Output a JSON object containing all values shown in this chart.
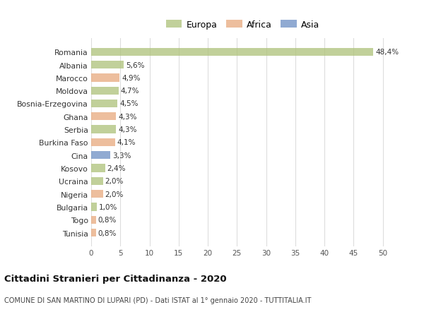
{
  "countries": [
    "Romania",
    "Albania",
    "Marocco",
    "Moldova",
    "Bosnia-Erzegovina",
    "Ghana",
    "Serbia",
    "Burkina Faso",
    "Cina",
    "Kosovo",
    "Ucraina",
    "Nigeria",
    "Bulgaria",
    "Togo",
    "Tunisia"
  ],
  "values": [
    48.4,
    5.6,
    4.9,
    4.7,
    4.5,
    4.3,
    4.3,
    4.1,
    3.3,
    2.4,
    2.0,
    2.0,
    1.0,
    0.8,
    0.8
  ],
  "labels": [
    "48,4%",
    "5,6%",
    "4,9%",
    "4,7%",
    "4,5%",
    "4,3%",
    "4,3%",
    "4,1%",
    "3,3%",
    "2,4%",
    "2,0%",
    "2,0%",
    "1,0%",
    "0,8%",
    "0,8%"
  ],
  "continents": [
    "Europa",
    "Europa",
    "Africa",
    "Europa",
    "Europa",
    "Africa",
    "Europa",
    "Africa",
    "Asia",
    "Europa",
    "Europa",
    "Africa",
    "Europa",
    "Africa",
    "Africa"
  ],
  "colors": {
    "Europa": "#adc178",
    "Africa": "#e8a87c",
    "Asia": "#6b8ec4"
  },
  "legend_labels": [
    "Europa",
    "Africa",
    "Asia"
  ],
  "title_bold": "Cittadini Stranieri per Cittadinanza - 2020",
  "subtitle": "COMUNE DI SAN MARTINO DI LUPARI (PD) - Dati ISTAT al 1° gennaio 2020 - TUTTITALIA.IT",
  "xlim": [
    0,
    52
  ],
  "xticks": [
    0,
    5,
    10,
    15,
    20,
    25,
    30,
    35,
    40,
    45,
    50
  ],
  "background_color": "#ffffff",
  "grid_color": "#dddddd",
  "bar_alpha": 0.75
}
